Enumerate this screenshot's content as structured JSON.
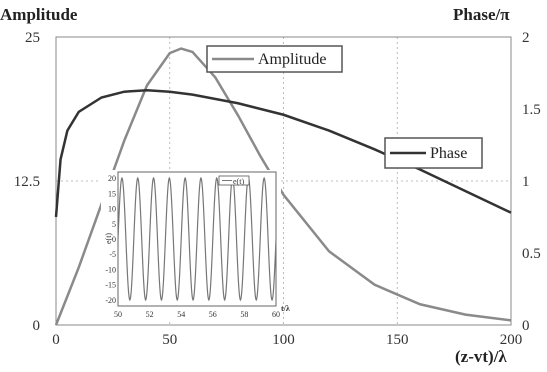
{
  "chart_data": {
    "type": "line",
    "left_axis_label": "Amplitude",
    "right_axis_label": "Phase/π",
    "xlabel": "(z-vt)/λ",
    "xlim": [
      0,
      200
    ],
    "ylim_left": [
      0,
      25
    ],
    "ylim_right": [
      0,
      2
    ],
    "x_ticks": [
      "0",
      "50",
      "100",
      "150",
      "200"
    ],
    "y_left_ticks": [
      "0",
      "12.5",
      "25"
    ],
    "y_right_ticks": [
      "0",
      "0.5",
      "1",
      "1.5",
      "2"
    ],
    "grid": true,
    "series": [
      {
        "name": "Amplitude",
        "axis": "left",
        "color": "#8a8a8a",
        "x": [
          0,
          10,
          20,
          30,
          40,
          50,
          55,
          60,
          70,
          80,
          90,
          100,
          120,
          140,
          160,
          180,
          200
        ],
        "y": [
          0,
          5,
          10.5,
          16,
          20.8,
          23.6,
          24.0,
          23.7,
          21.5,
          18.2,
          14.6,
          11.3,
          6.4,
          3.5,
          1.8,
          0.9,
          0.4
        ]
      },
      {
        "name": "Phase",
        "axis": "right",
        "color": "#333333",
        "x": [
          0,
          2,
          5,
          10,
          20,
          30,
          40,
          50,
          60,
          80,
          100,
          120,
          140,
          160,
          180,
          200
        ],
        "y": [
          0.75,
          1.15,
          1.35,
          1.48,
          1.58,
          1.62,
          1.63,
          1.62,
          1.6,
          1.54,
          1.46,
          1.35,
          1.22,
          1.08,
          0.93,
          0.78
        ]
      }
    ],
    "inset": {
      "ylabel": "e(t)",
      "xlabel": "t/λ",
      "legend": "e(t)",
      "x_ticks": [
        "50",
        "52",
        "54",
        "56",
        "58",
        "60"
      ],
      "y_ticks": [
        "20",
        "15",
        "10",
        "5",
        "0",
        "-5",
        "-10",
        "-15",
        "-20"
      ],
      "xlim": [
        50,
        60
      ],
      "ylim": [
        -22,
        22
      ],
      "amplitude": 20,
      "period": 1
    }
  }
}
